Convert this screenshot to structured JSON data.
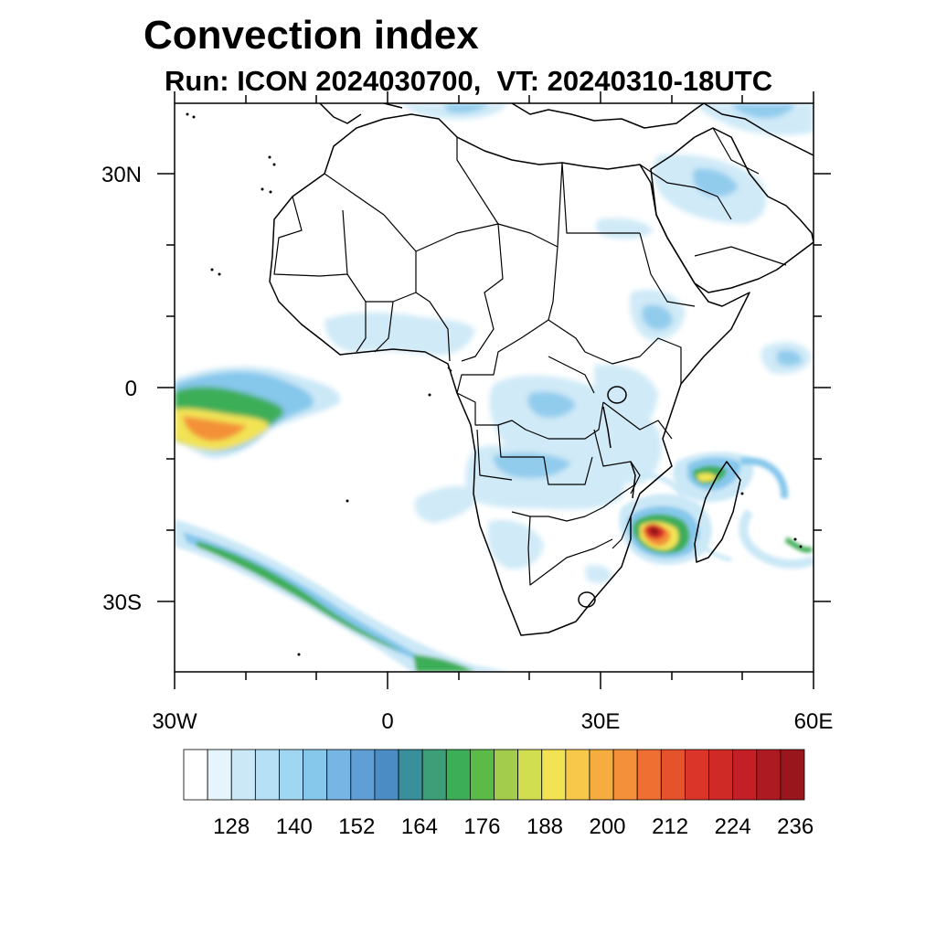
{
  "title": "Convection index",
  "subtitle": "Run: ICON 2024030700,  VT: 20240310-18UTC",
  "axes": {
    "y_ticks": [
      "30N",
      "0",
      "30S"
    ],
    "x_ticks": [
      "30W",
      "0",
      "30E",
      "60E"
    ]
  },
  "colorbar": {
    "labels": [
      "128",
      "140",
      "152",
      "164",
      "176",
      "188",
      "200",
      "212",
      "224",
      "236"
    ],
    "colors": [
      "#ffffff",
      "#e6f4fb",
      "#cbe8f7",
      "#b5e0f5",
      "#9fd7f3",
      "#86c7ec",
      "#76b5e4",
      "#609fd6",
      "#4a8cc3",
      "#3a8f9d",
      "#3c9f78",
      "#3cae58",
      "#5cba48",
      "#a4cc4c",
      "#d0de50",
      "#f2e354",
      "#f8c84a",
      "#f6ad40",
      "#f39039",
      "#ee6f31",
      "#e4532b",
      "#db3428",
      "#d02a27",
      "#c22026",
      "#ad1a22",
      "#98161c"
    ]
  },
  "field_colors": {
    "light": "#cbe8f7",
    "blue": "#86c7ec",
    "dark_blue": "#609fd6",
    "teal": "#3a8f9d",
    "green": "#3cae58",
    "lime": "#a4cc4c",
    "yellow": "#f2e354",
    "orange": "#f39039",
    "red": "#db3428",
    "dark_red": "#98161c"
  }
}
